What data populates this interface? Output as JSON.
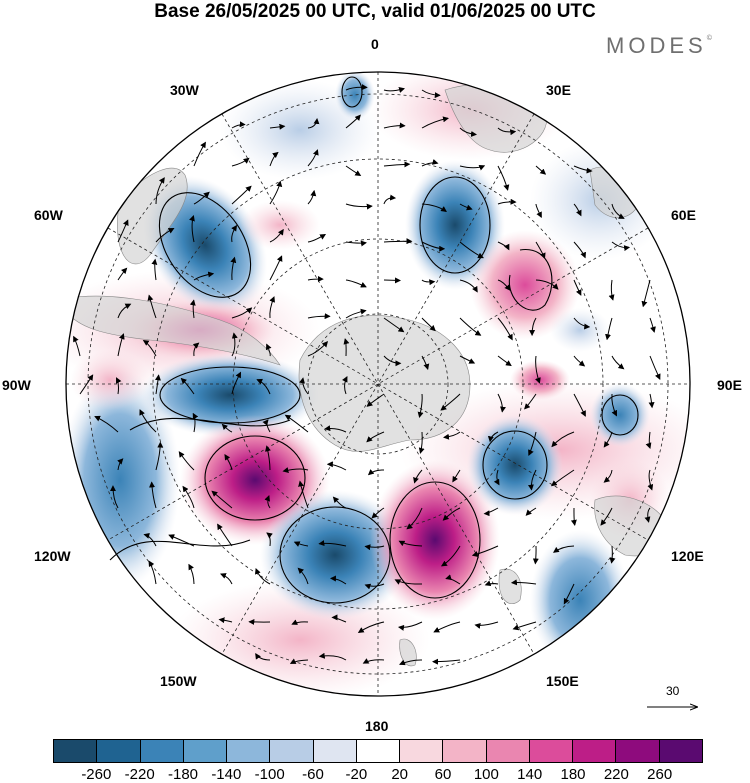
{
  "title": "Base 26/05/2025 00 UTC, valid 01/06/2025 00 UTC",
  "brand": "MODES",
  "brand_mark": "©",
  "map": {
    "projection": "south-polar-stereographic",
    "lon_labels": {
      "top": "0",
      "top_right": "30E",
      "right_upper": "60E",
      "right": "90E",
      "right_lower": "120E",
      "bottom_right": "150E",
      "bottom": "180",
      "bottom_left": "150W",
      "left_lower": "120W",
      "left": "90W",
      "left_upper": "60W",
      "top_left": "30W"
    },
    "reference_vector": "30",
    "colors": {
      "land": "#d4d4d4",
      "grid": "#222222"
    }
  },
  "colorbar": {
    "ticks": [
      "-260",
      "-220",
      "-180",
      "-140",
      "-100",
      "-60",
      "-20",
      "20",
      "60",
      "100",
      "140",
      "180",
      "220",
      "260"
    ],
    "colors": [
      "#1a4a6b",
      "#1f6391",
      "#3b83b7",
      "#5f9fcb",
      "#8db7db",
      "#b8cde6",
      "#dfe5f1",
      "#ffffff",
      "#f8d8df",
      "#f3b4c7",
      "#ea86b0",
      "#dc4c9b",
      "#bd1e87",
      "#8e0b7d",
      "#5a0a70"
    ]
  }
}
